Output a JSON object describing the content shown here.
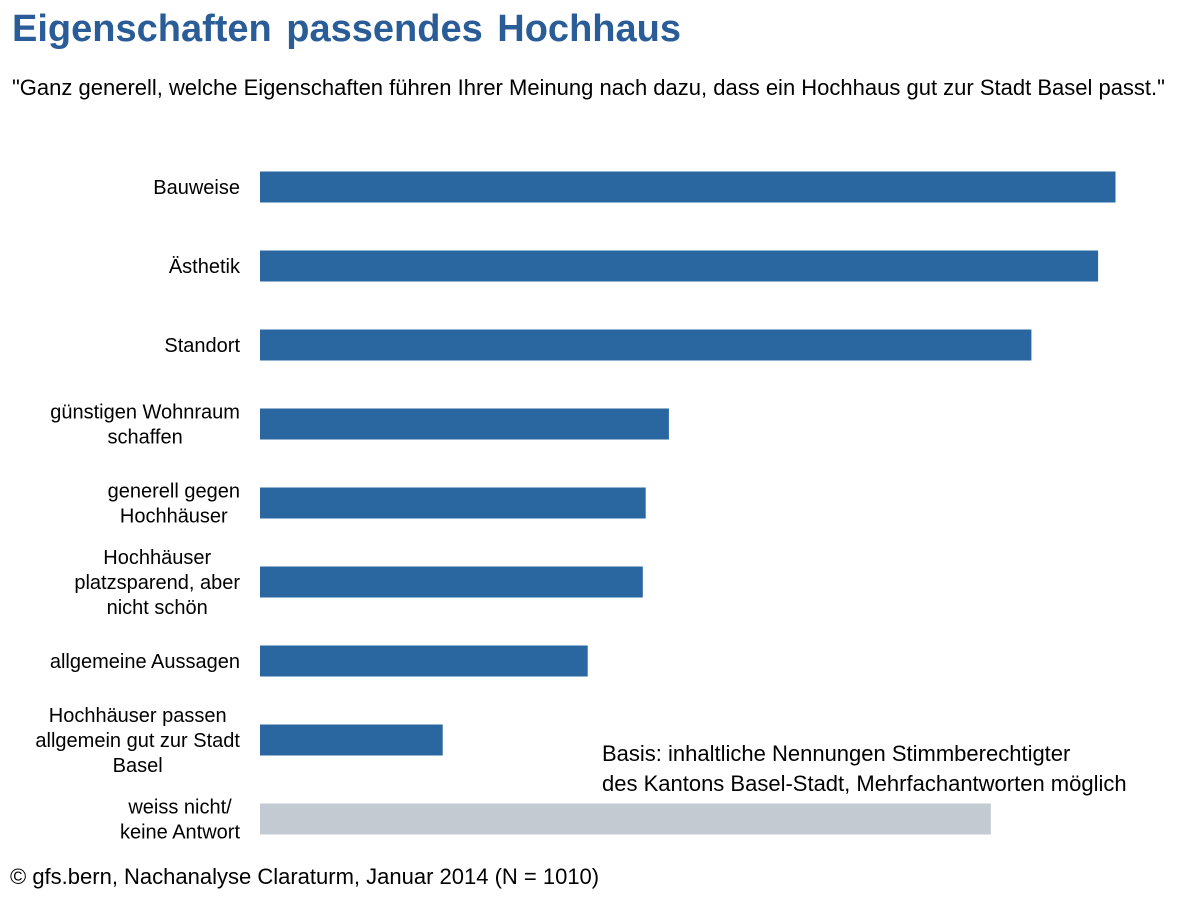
{
  "title": "Eigenschaften passendes Hochhaus",
  "subtitle": "\"Ganz generell, welche Eigenschaften führen Ihrer Meinung nach dazu, dass ein Hochhaus gut zur Stadt Basel passt.\"",
  "note_lines": [
    "Basis: inhaltliche Nennungen Stimmberechtigter",
    "des Kantons Basel-Stadt, Mehrfachantworten möglich"
  ],
  "source": "© gfs.bern, Nachanalyse Claraturm, Januar 2014 (N = 1010)",
  "colors": {
    "bar": "#2a67a0",
    "bar_unknown": "#c3cad1",
    "title": "#2a5d97"
  },
  "chart_data": {
    "type": "bar",
    "orientation": "horizontal",
    "categories": [
      [
        "Bauweise"
      ],
      [
        "Ästhetik"
      ],
      [
        "Standort"
      ],
      [
        "günstigen Wohnraum",
        "schaffen"
      ],
      [
        "generell gegen",
        "Hochhäuser"
      ],
      [
        "Hochhäuser",
        "platzsparend, aber",
        "nicht schön"
      ],
      [
        "allgemeine Aussagen"
      ],
      [
        "Hochhäuser passen",
        "allgemein gut zur Stadt",
        "Basel"
      ],
      [
        "weiss nicht/",
        "keine Antwort"
      ]
    ],
    "values": [
      29.5,
      28.9,
      26.6,
      14.1,
      13.3,
      13.2,
      11.3,
      6.3,
      25.2
    ],
    "highlight_gray": [
      false,
      false,
      false,
      false,
      false,
      false,
      false,
      false,
      true
    ],
    "xlim": [
      0,
      30
    ],
    "grid": false,
    "legend": "none",
    "axis_ticks_shown": false
  }
}
